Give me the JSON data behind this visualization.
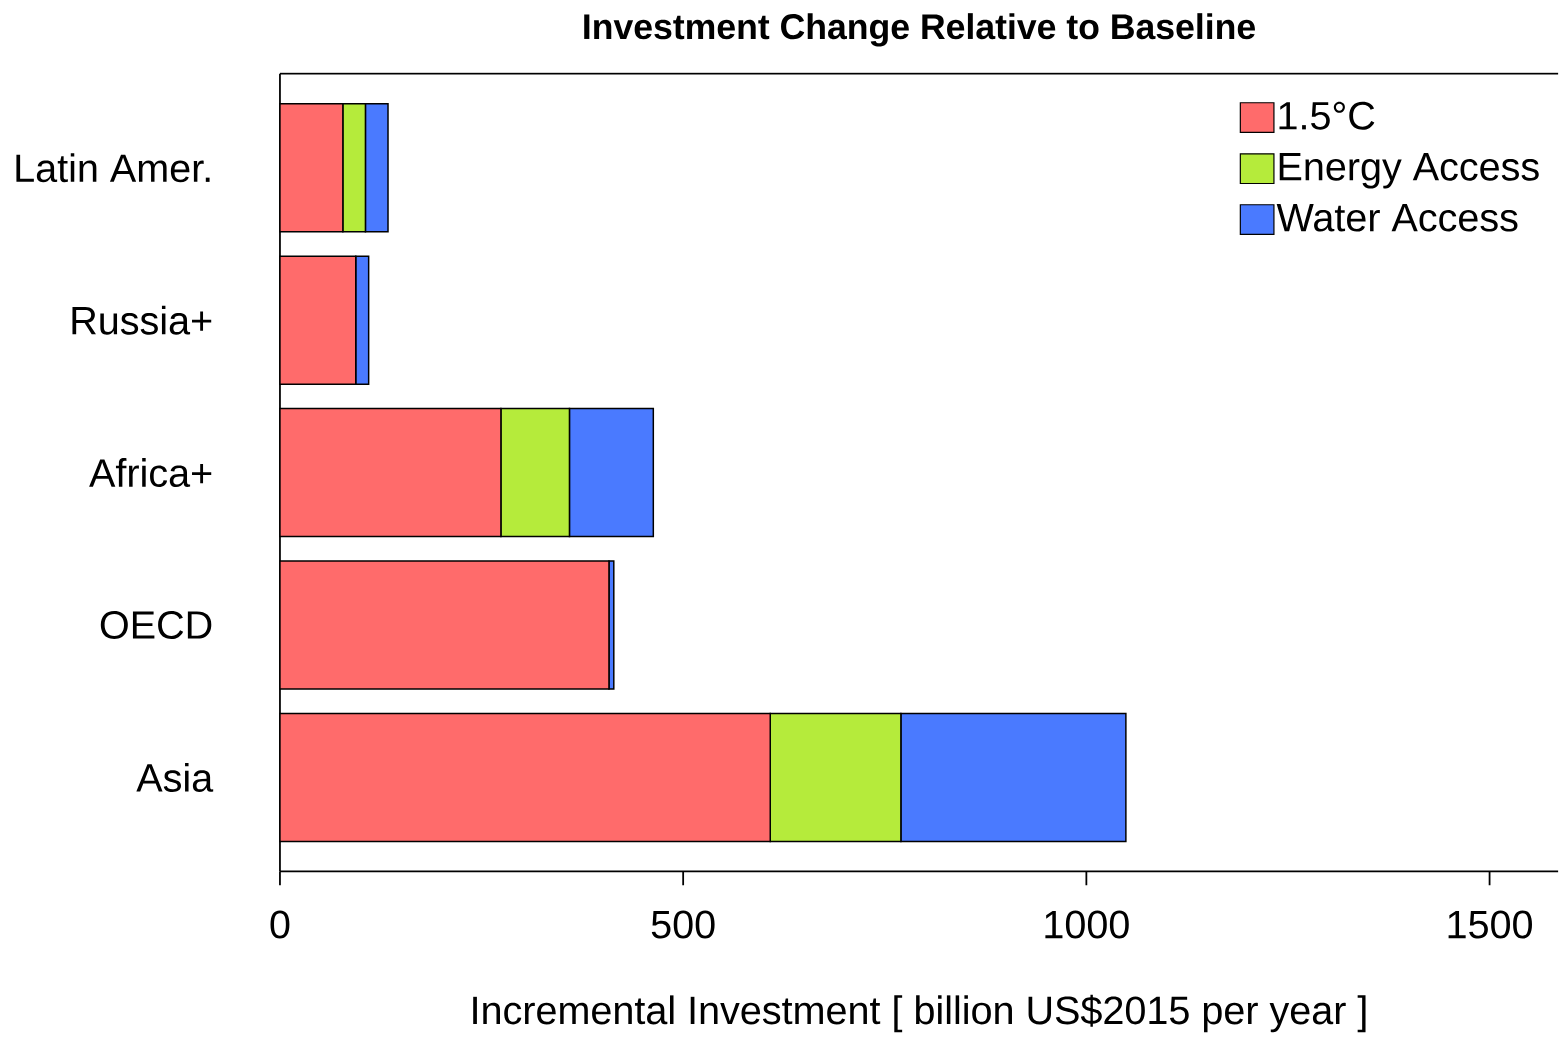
{
  "chart_data": {
    "type": "bar",
    "orientation": "horizontal",
    "stacked": true,
    "title": "Investment Change Relative to Baseline",
    "xlabel": "Incremental Investment [ billion US$2015 per year ]",
    "categories": [
      "Latin Amer.",
      "Russia+",
      "Africa+",
      "OECD",
      "Asia"
    ],
    "series": [
      {
        "name": "1.5°C",
        "color": "#ff6b6b",
        "values": [
          78,
          94,
          274,
          408,
          608
        ]
      },
      {
        "name": "Energy Access",
        "color": "#b5eb3b",
        "values": [
          28,
          0,
          85,
          0,
          162
        ]
      },
      {
        "name": "Water Access",
        "color": "#4a7aff",
        "values": [
          28,
          16,
          104,
          6,
          279
        ]
      }
    ],
    "xlim": [
      0,
      1585
    ],
    "xticks": [
      0,
      500,
      1000,
      1500
    ],
    "legend": "top right",
    "grid": false
  }
}
